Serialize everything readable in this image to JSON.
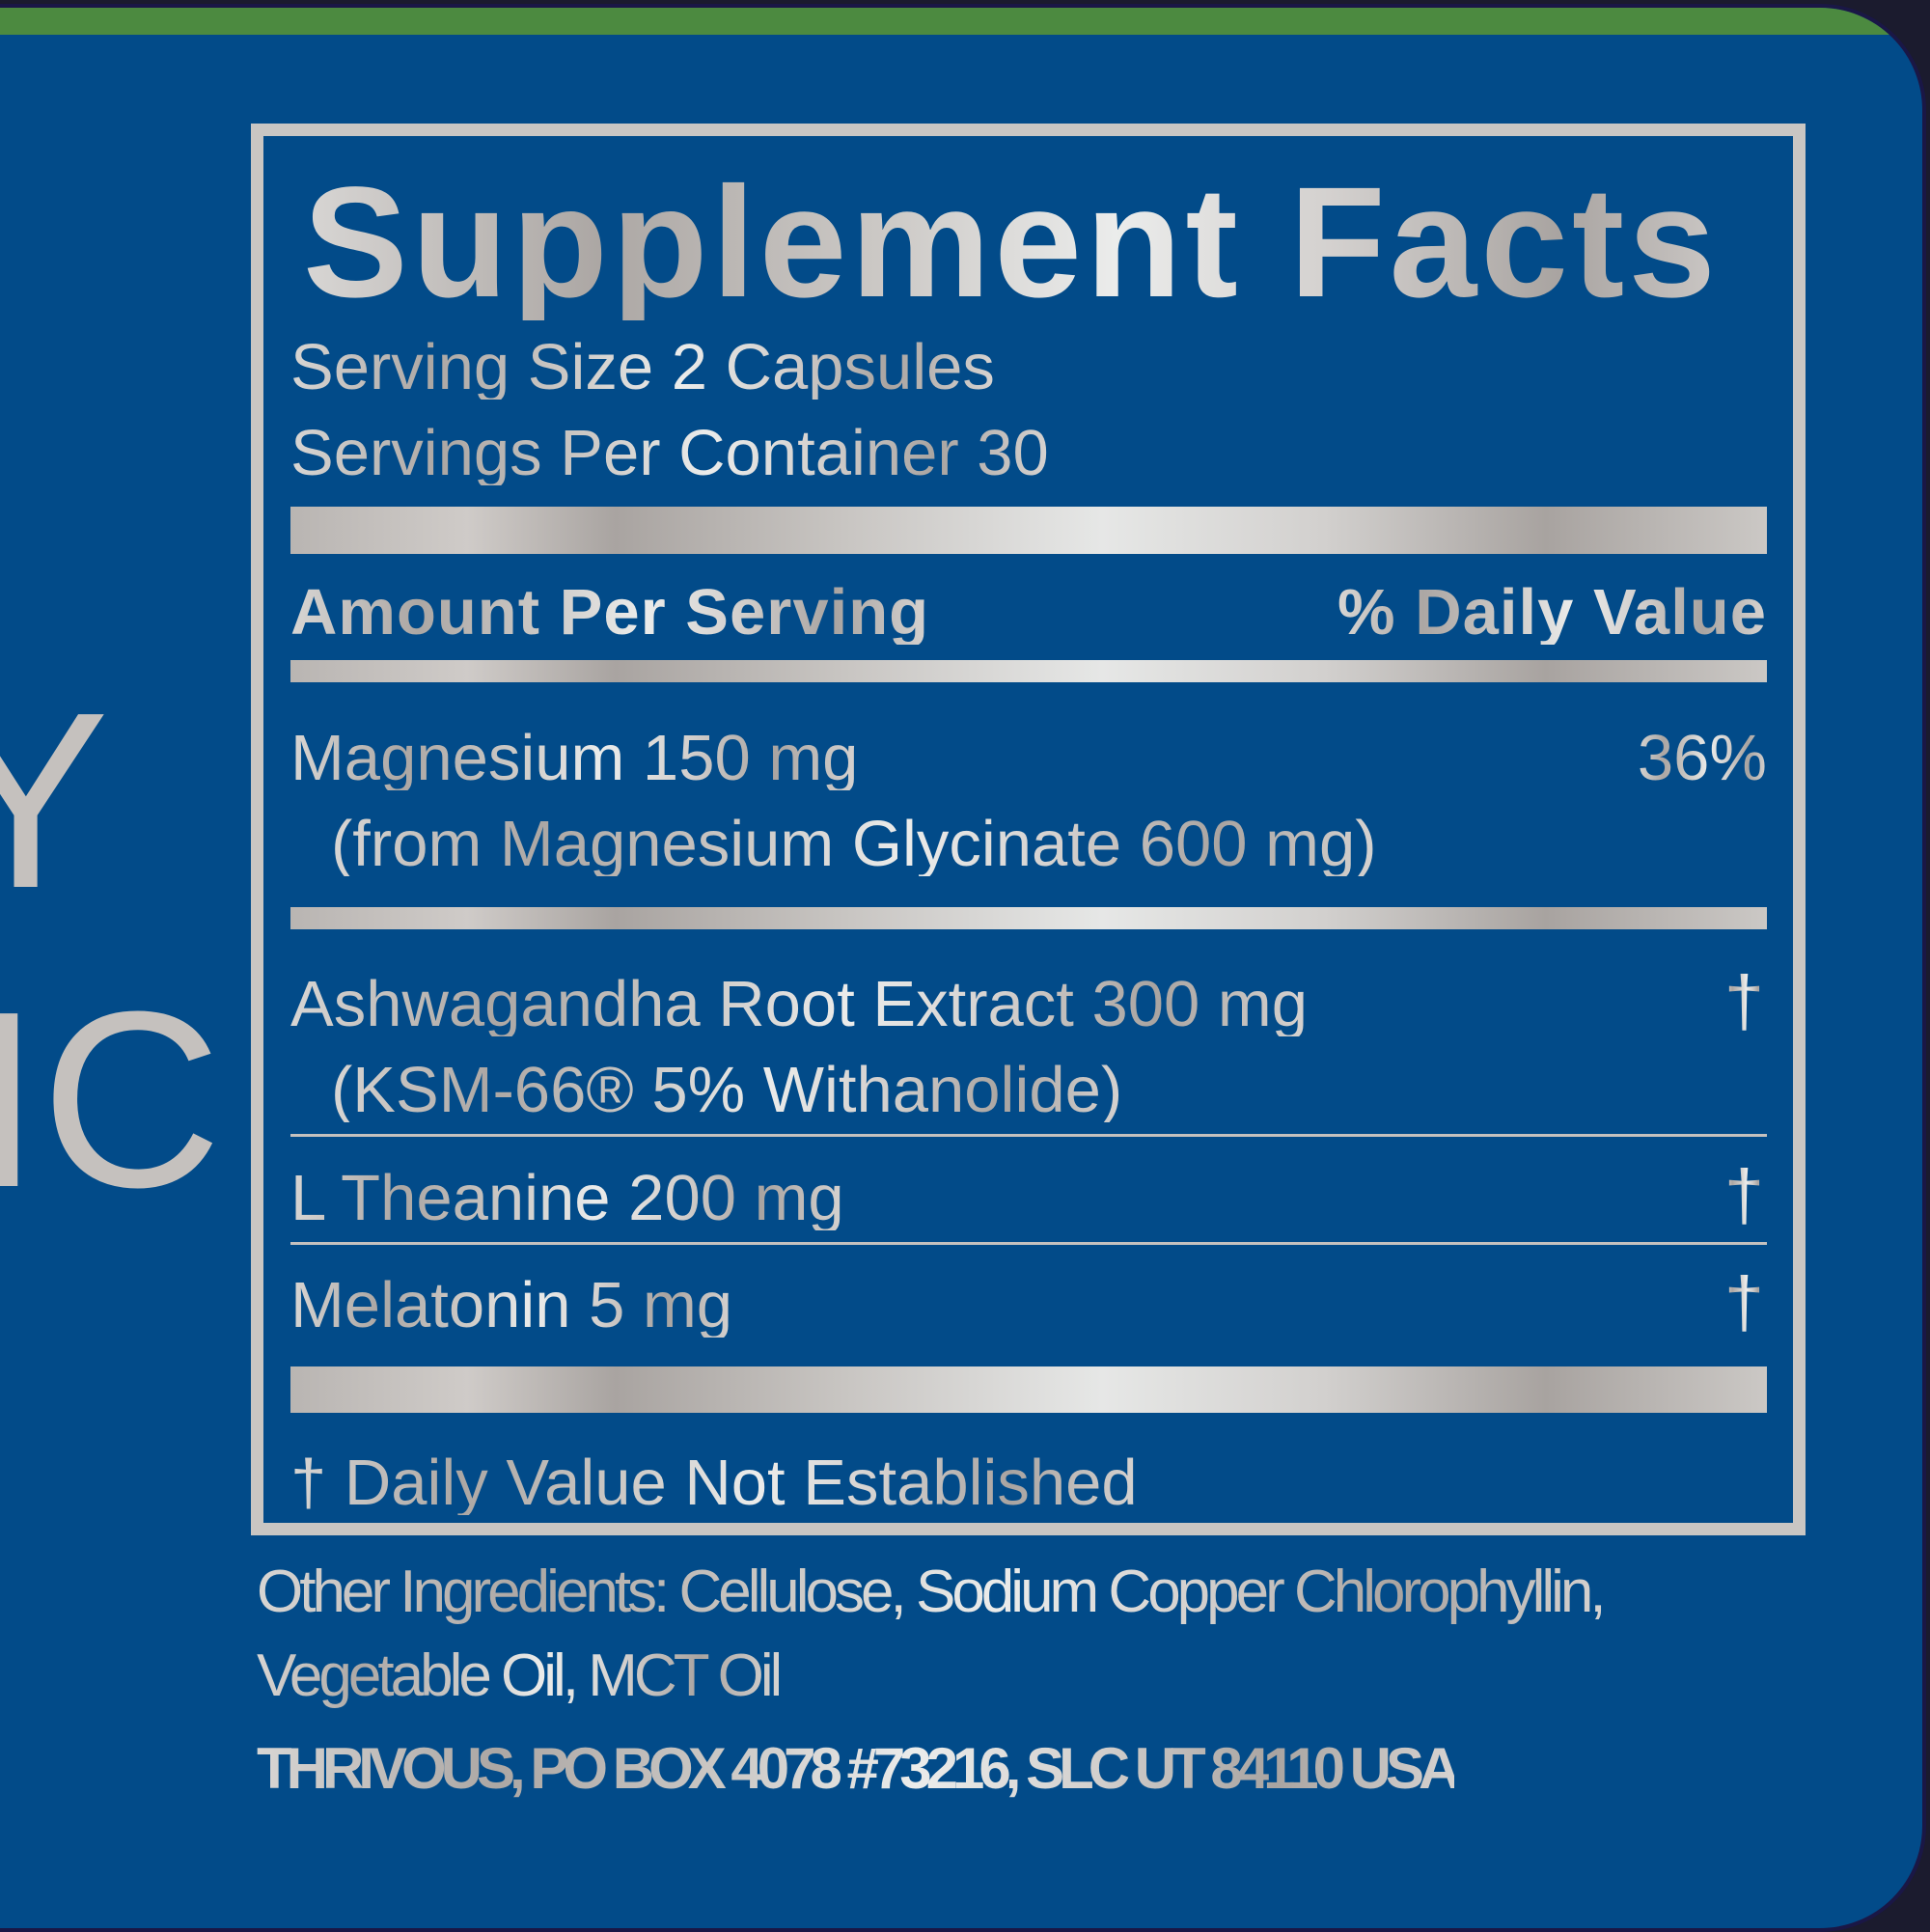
{
  "colors": {
    "background": "#024b89",
    "top_band": "#4c8a40",
    "metallic_light": "#e6e7e6",
    "metallic_dark": "#a8a3a0"
  },
  "side_text": [
    "Y",
    "IC"
  ],
  "facts": {
    "title": "Supplement Facts",
    "serving_size": "Serving Size 2 Capsules",
    "servings_per_container": "Servings Per Container 30",
    "header_amount": "Amount Per Serving",
    "header_dv": "% Daily Value",
    "rows": [
      {
        "name": "Magnesium 150 mg",
        "sub": "(from Magnesium Glycinate 600 mg)",
        "dv": "36%"
      },
      {
        "name": "Ashwagandha Root Extract 300 mg",
        "sub": "(KSM-66® 5% Withanolide)",
        "dv": "†"
      },
      {
        "name": "L Theanine 200 mg",
        "dv": "†"
      },
      {
        "name": "Melatonin 5 mg",
        "dv": "†"
      }
    ],
    "footnote": "† Daily Value Not Established"
  },
  "other_ingredients": [
    "Other Ingredients: Cellulose, Sodium Copper Chlorophyllin,",
    "Vegetable Oil, MCT Oil"
  ],
  "address": "THRIVOUS, PO BOX 4078 #73216, SLC UT 84110 USA"
}
